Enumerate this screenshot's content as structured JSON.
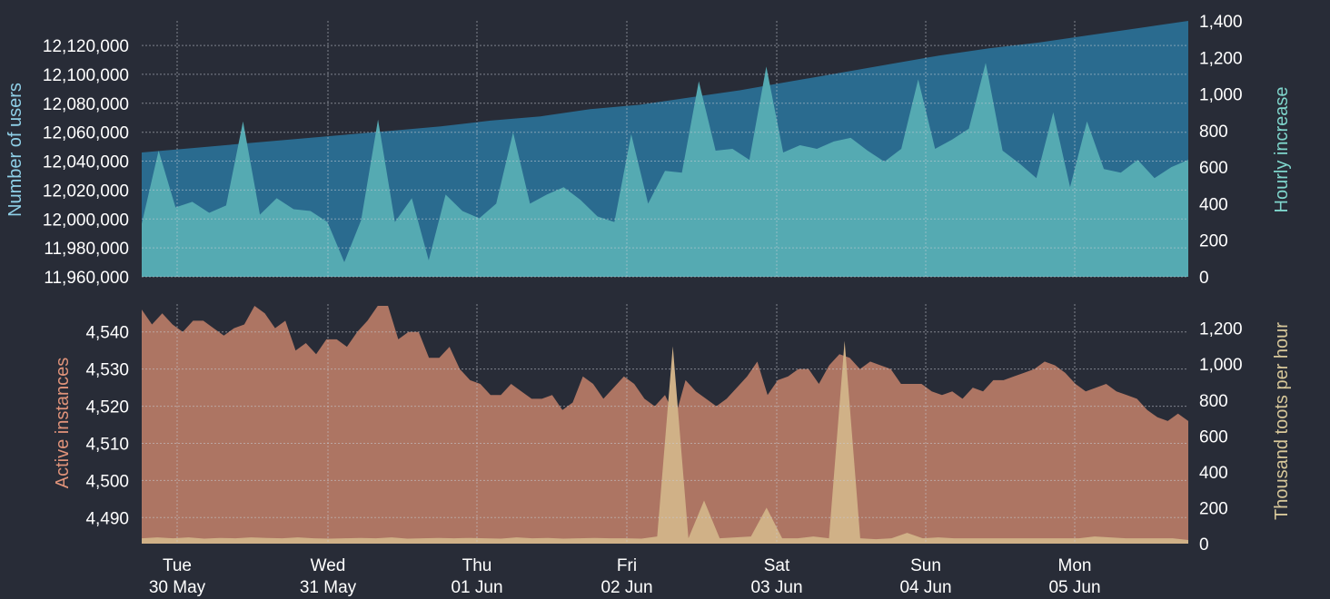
{
  "colors": {
    "background": "#282c37",
    "users_area": "#2a6b8f",
    "hourly_area": "#55aab2",
    "instances_area": "#ad7563",
    "toots_area": "#d0b187",
    "users_axis_title": "#8fd0e8",
    "hourly_axis_title": "#7fd6cc",
    "instances_axis_title": "#e0937a",
    "toots_axis_title": "#d8c89a",
    "tick_text": "#ffffff"
  },
  "chart_data": [
    {
      "id": "users",
      "type": "area",
      "ylabel_left": "Number of users",
      "ylabel_right": "Hourly increase",
      "left_ticks": [
        "11,960,000",
        "11,980,000",
        "12,000,000",
        "12,020,000",
        "12,040,000",
        "12,060,000",
        "12,080,000",
        "12,100,000",
        "12,120,000"
      ],
      "left_tick_values": [
        11960000,
        11980000,
        12000000,
        12020000,
        12040000,
        12060000,
        12080000,
        12100000,
        12120000
      ],
      "right_ticks": [
        "0",
        "200",
        "400",
        "600",
        "800",
        "1,000",
        "1,200",
        "1,400"
      ],
      "right_tick_values": [
        0,
        200,
        400,
        600,
        800,
        1000,
        1200,
        1400
      ],
      "ylim_left": [
        11960000,
        12137000
      ],
      "ylim_right": [
        0,
        1400
      ],
      "grid": true,
      "series": [
        {
          "axis": "left",
          "values": [
            12046000,
            12049000,
            12052000,
            12055000,
            12058000,
            12061000,
            12064000,
            12068000,
            12071000,
            12076000,
            12079000,
            12084000,
            12089000,
            12095000,
            12101000,
            12107000,
            12113000,
            12118000,
            12122000,
            12127000,
            12132000,
            12137000
          ]
        },
        {
          "axis": "right",
          "values": [
            290,
            690,
            380,
            410,
            350,
            390,
            850,
            340,
            430,
            370,
            360,
            300,
            80,
            310,
            860,
            300,
            430,
            90,
            450,
            360,
            320,
            400,
            790,
            400,
            450,
            490,
            420,
            330,
            300,
            780,
            400,
            580,
            570,
            1070,
            690,
            700,
            640,
            1150,
            680,
            720,
            700,
            740,
            760,
            690,
            630,
            700,
            1080,
            700,
            750,
            810,
            1170,
            690,
            620,
            540,
            900,
            490,
            850,
            590,
            570,
            640,
            540,
            600,
            640
          ]
        }
      ]
    },
    {
      "id": "instances",
      "type": "area",
      "ylabel_left": "Active instances",
      "ylabel_right": "Thousand toots per hour",
      "left_ticks": [
        "4,490",
        "4,500",
        "4,510",
        "4,520",
        "4,530",
        "4,540"
      ],
      "left_tick_values": [
        4490,
        4500,
        4510,
        4520,
        4530,
        4540
      ],
      "right_ticks": [
        "0",
        "200",
        "400",
        "600",
        "800",
        "1,000",
        "1,200"
      ],
      "right_tick_values": [
        0,
        200,
        400,
        600,
        800,
        1000,
        1200
      ],
      "ylim_left": [
        4483,
        4547.5
      ],
      "ylim_right": [
        0,
        1335
      ],
      "grid": true,
      "series": [
        {
          "axis": "left",
          "values": [
            4546,
            4542,
            4545,
            4542,
            4540,
            4543,
            4543,
            4541,
            4539,
            4541,
            4542,
            4547,
            4545,
            4541,
            4543,
            4535,
            4537,
            4534,
            4538,
            4538,
            4536,
            4540,
            4543,
            4547,
            4547,
            4538,
            4540,
            4540,
            4533,
            4533,
            4536,
            4530,
            4527,
            4526,
            4523,
            4523,
            4526,
            4524,
            4522,
            4522,
            4523,
            4519,
            4521,
            4528,
            4526,
            4522,
            4525,
            4528,
            4526,
            4522,
            4520,
            4523,
            4517,
            4527,
            4524,
            4522,
            4520,
            4522,
            4525,
            4528,
            4532,
            4523,
            4527,
            4528,
            4530,
            4530,
            4526,
            4531,
            4534,
            4533,
            4530,
            4532,
            4531,
            4530,
            4526,
            4526,
            4526,
            4524,
            4523,
            4524,
            4522,
            4525,
            4524,
            4527,
            4527,
            4528,
            4529,
            4530,
            4532,
            4531,
            4529,
            4526,
            4524,
            4525,
            4526,
            4524,
            4523,
            4522,
            4519,
            4517,
            4516,
            4518,
            4516
          ]
        },
        {
          "axis": "right",
          "values": [
            30,
            35,
            30,
            35,
            28,
            32,
            30,
            35,
            32,
            30,
            35,
            30,
            28,
            30,
            32,
            30,
            35,
            28,
            30,
            32,
            30,
            32,
            30,
            28,
            35,
            30,
            32,
            28,
            30,
            32,
            30,
            30,
            28,
            40,
            1100,
            30,
            240,
            30,
            35,
            40,
            200,
            30,
            30,
            40,
            30,
            1130,
            30,
            25,
            30,
            60,
            30,
            35,
            30,
            30,
            30,
            30,
            30,
            30,
            30,
            30,
            30,
            40,
            35,
            30,
            30,
            30,
            30,
            20
          ]
        }
      ]
    }
  ],
  "x_axis": {
    "ticks": [
      {
        "day": "Tue",
        "date": "30 May"
      },
      {
        "day": "Wed",
        "date": "31 May"
      },
      {
        "day": "Thu",
        "date": "01 Jun"
      },
      {
        "day": "Fri",
        "date": "02 Jun"
      },
      {
        "day": "Sat",
        "date": "03 Jun"
      },
      {
        "day": "Sun",
        "date": "04 Jun"
      },
      {
        "day": "Mon",
        "date": "05 Jun"
      }
    ]
  }
}
